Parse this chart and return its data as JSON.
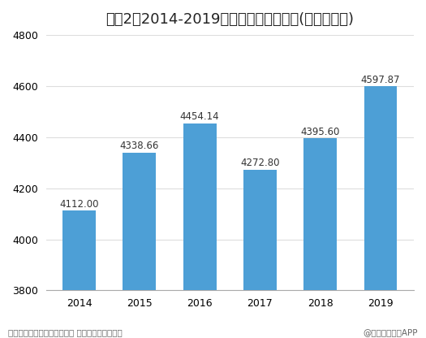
{
  "title": "图表2：2014-2019年中国茶叶种植面积(单位：万亩)",
  "categories": [
    "2014",
    "2015",
    "2016",
    "2017",
    "2018",
    "2019"
  ],
  "values": [
    4112.0,
    4338.66,
    4454.14,
    4272.8,
    4395.6,
    4597.87
  ],
  "labels": [
    "4112.00",
    "4338.66",
    "4454.14",
    "4272.80",
    "4395.60",
    "4597.87"
  ],
  "bar_color": "#4d9fd6",
  "ylim": [
    3800,
    4800
  ],
  "yticks": [
    3800,
    4000,
    4200,
    4400,
    4600,
    4800
  ],
  "background_color": "#ffffff",
  "footer_left": "资料来源：中国茶叶流通协会 前瞻产业研究院整理",
  "footer_right": "@前瞻经济学人APP",
  "title_fontsize": 13,
  "label_fontsize": 8.5,
  "tick_fontsize": 9,
  "footer_fontsize": 7.5
}
